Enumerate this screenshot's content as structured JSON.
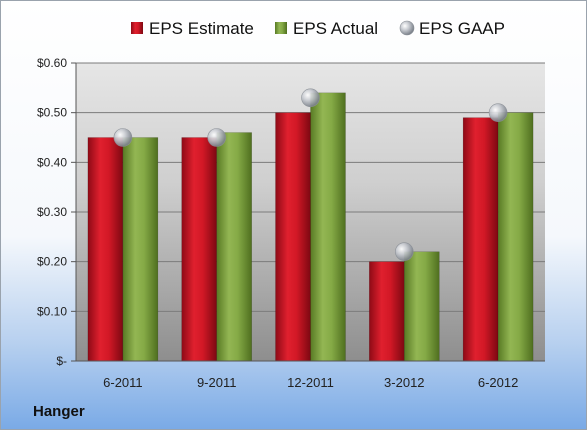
{
  "company": "Hanger",
  "chart_data": {
    "type": "bar",
    "title": "",
    "xlabel": "",
    "ylabel": "",
    "categories": [
      "6-2011",
      "9-2011",
      "12-2011",
      "3-2012",
      "6-2012"
    ],
    "series": [
      {
        "name": "EPS Estimate",
        "type": "bar",
        "color": "#c8102e",
        "values": [
          0.45,
          0.45,
          0.5,
          0.2,
          0.49
        ]
      },
      {
        "name": "EPS Actual",
        "type": "bar",
        "color": "#7fa040",
        "values": [
          0.45,
          0.46,
          0.54,
          0.22,
          0.5
        ]
      },
      {
        "name": "EPS GAAP",
        "type": "marker",
        "color": "#b8bcc4",
        "values": [
          0.45,
          0.45,
          0.53,
          0.22,
          0.5
        ]
      }
    ],
    "ylim": [
      0,
      0.6
    ],
    "yticks": [
      0,
      0.1,
      0.2,
      0.3,
      0.4,
      0.5,
      0.6
    ],
    "ytick_labels": [
      "$-",
      "$0.10",
      "$0.20",
      "$0.30",
      "$0.40",
      "$0.50",
      "$0.60"
    ],
    "grid": true,
    "legend_position": "top"
  }
}
